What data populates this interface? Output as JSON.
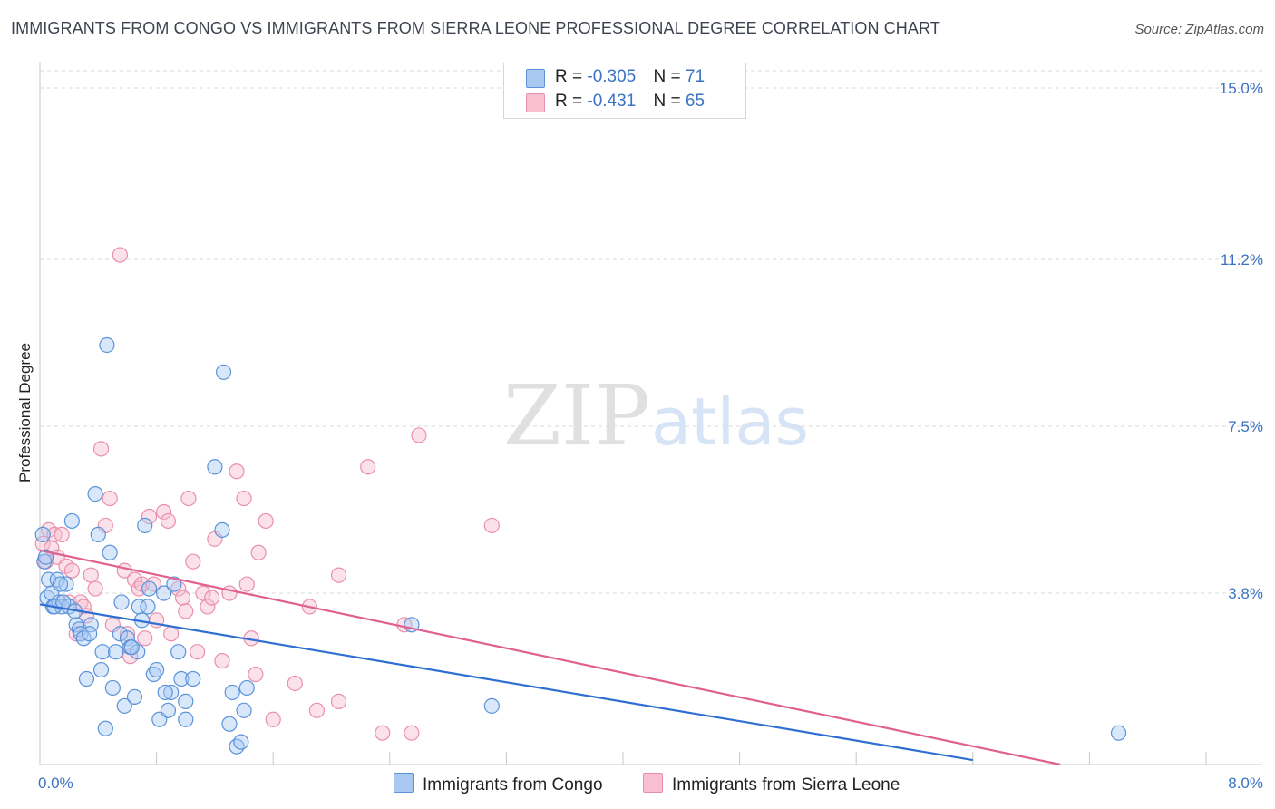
{
  "title": "IMMIGRANTS FROM CONGO VS IMMIGRANTS FROM SIERRA LEONE PROFESSIONAL DEGREE CORRELATION CHART",
  "source": "Source: ZipAtlas.com",
  "watermark": {
    "zip": "ZIP",
    "atlas": "atlas"
  },
  "legend": {
    "rows": [
      {
        "r_label": "R = ",
        "r_value": "-0.305",
        "n_label": "N = ",
        "n_value": "71"
      },
      {
        "r_label": "R = ",
        "r_value": "-0.431",
        "n_label": "N = ",
        "n_value": "65"
      }
    ]
  },
  "colors": {
    "congo_fill": "#a9c9f3",
    "congo_stroke": "#5b93d9",
    "congo_line": "#2f6fd1",
    "sl_fill": "#f7bfd0",
    "sl_stroke": "#ea8fab",
    "sl_line": "#e0608f",
    "grid": "#d9d9d9",
    "tick_label": "#3b73c4"
  },
  "chart_data": {
    "type": "scatter",
    "title": "IMMIGRANTS FROM CONGO VS IMMIGRANTS FROM SIERRA LEONE PROFESSIONAL DEGREE CORRELATION CHART",
    "xlabel": "",
    "ylabel": "Professional Degree",
    "xlim": [
      0,
      8
    ],
    "ylim": [
      0,
      15.5
    ],
    "x_tick_labels": [
      "0.0%",
      "8.0%"
    ],
    "y_ticks": [
      3.8,
      7.5,
      11.2,
      15.0
    ],
    "y_tick_labels": [
      "3.8%",
      "7.5%",
      "11.2%",
      "15.0%"
    ],
    "grid": true,
    "legend_position": "top-center",
    "series": [
      {
        "name": "Immigrants from Congo",
        "r": -0.305,
        "n": 71,
        "trend": {
          "x0": 0,
          "y0": 3.55,
          "x1": 6.4,
          "y1": 0.1
        },
        "points": [
          [
            0.02,
            5.1
          ],
          [
            0.03,
            4.5
          ],
          [
            0.05,
            3.7
          ],
          [
            0.06,
            4.1
          ],
          [
            0.08,
            3.8
          ],
          [
            0.09,
            3.5
          ],
          [
            0.12,
            4.1
          ],
          [
            0.13,
            3.6
          ],
          [
            0.15,
            3.5
          ],
          [
            0.18,
            4.0
          ],
          [
            0.2,
            3.5
          ],
          [
            0.22,
            5.4
          ],
          [
            0.25,
            3.1
          ],
          [
            0.27,
            3.0
          ],
          [
            0.28,
            2.9
          ],
          [
            0.3,
            2.8
          ],
          [
            0.32,
            1.9
          ],
          [
            0.35,
            3.1
          ],
          [
            0.38,
            6.0
          ],
          [
            0.4,
            5.1
          ],
          [
            0.42,
            2.1
          ],
          [
            0.43,
            2.5
          ],
          [
            0.45,
            0.8
          ],
          [
            0.48,
            4.7
          ],
          [
            0.5,
            1.7
          ],
          [
            0.52,
            2.5
          ],
          [
            0.55,
            2.9
          ],
          [
            0.58,
            1.3
          ],
          [
            0.6,
            2.8
          ],
          [
            0.62,
            2.6
          ],
          [
            0.65,
            1.5
          ],
          [
            0.67,
            2.5
          ],
          [
            0.68,
            3.5
          ],
          [
            0.7,
            3.2
          ],
          [
            0.72,
            5.3
          ],
          [
            0.75,
            3.9
          ],
          [
            0.78,
            2.0
          ],
          [
            0.8,
            2.1
          ],
          [
            0.82,
            1.0
          ],
          [
            0.85,
            3.8
          ],
          [
            0.88,
            1.2
          ],
          [
            0.9,
            1.6
          ],
          [
            0.92,
            4.0
          ],
          [
            0.95,
            2.5
          ],
          [
            0.97,
            1.9
          ],
          [
            1.0,
            1.0
          ],
          [
            1.0,
            1.4
          ],
          [
            1.2,
            6.6
          ],
          [
            1.25,
            5.2
          ],
          [
            1.3,
            0.9
          ],
          [
            1.32,
            1.6
          ],
          [
            1.35,
            0.4
          ],
          [
            1.4,
            1.2
          ],
          [
            1.42,
            1.7
          ],
          [
            2.55,
            3.1
          ],
          [
            3.1,
            1.3
          ],
          [
            7.4,
            0.7
          ],
          [
            0.46,
            9.3
          ],
          [
            1.26,
            8.7
          ],
          [
            0.04,
            4.6
          ],
          [
            0.1,
            3.5
          ],
          [
            0.14,
            4.0
          ],
          [
            0.16,
            3.6
          ],
          [
            0.24,
            3.4
          ],
          [
            0.34,
            2.9
          ],
          [
            0.56,
            3.6
          ],
          [
            0.63,
            2.6
          ],
          [
            0.74,
            3.5
          ],
          [
            0.86,
            1.6
          ],
          [
            1.05,
            1.9
          ],
          [
            1.38,
            0.5
          ]
        ]
      },
      {
        "name": "Immigrants from Sierra Leone",
        "r": -0.431,
        "n": 65,
        "trend": {
          "x0": 0,
          "y0": 4.75,
          "x1": 7.0,
          "y1": 0.0
        },
        "points": [
          [
            0.02,
            4.9
          ],
          [
            0.04,
            4.5
          ],
          [
            0.06,
            5.2
          ],
          [
            0.08,
            4.8
          ],
          [
            0.1,
            5.1
          ],
          [
            0.12,
            4.6
          ],
          [
            0.15,
            5.1
          ],
          [
            0.18,
            4.4
          ],
          [
            0.2,
            3.6
          ],
          [
            0.22,
            4.3
          ],
          [
            0.25,
            2.9
          ],
          [
            0.28,
            3.6
          ],
          [
            0.3,
            3.5
          ],
          [
            0.32,
            3.3
          ],
          [
            0.35,
            4.2
          ],
          [
            0.38,
            3.9
          ],
          [
            0.42,
            7.0
          ],
          [
            0.45,
            5.3
          ],
          [
            0.48,
            5.9
          ],
          [
            0.5,
            3.1
          ],
          [
            0.55,
            11.3
          ],
          [
            0.58,
            4.3
          ],
          [
            0.6,
            2.9
          ],
          [
            0.62,
            2.4
          ],
          [
            0.65,
            4.1
          ],
          [
            0.68,
            3.9
          ],
          [
            0.7,
            4.0
          ],
          [
            0.72,
            2.8
          ],
          [
            0.75,
            5.5
          ],
          [
            0.78,
            4.0
          ],
          [
            0.8,
            3.2
          ],
          [
            0.85,
            5.6
          ],
          [
            0.88,
            5.4
          ],
          [
            0.9,
            2.9
          ],
          [
            0.95,
            3.9
          ],
          [
            0.98,
            3.7
          ],
          [
            1.0,
            3.4
          ],
          [
            1.02,
            5.9
          ],
          [
            1.05,
            4.5
          ],
          [
            1.08,
            2.5
          ],
          [
            1.12,
            3.8
          ],
          [
            1.15,
            3.5
          ],
          [
            1.18,
            3.7
          ],
          [
            1.2,
            5.0
          ],
          [
            1.25,
            2.3
          ],
          [
            1.3,
            3.8
          ],
          [
            1.35,
            6.5
          ],
          [
            1.4,
            5.9
          ],
          [
            1.42,
            4.0
          ],
          [
            1.45,
            2.8
          ],
          [
            1.48,
            2.0
          ],
          [
            1.5,
            4.7
          ],
          [
            1.55,
            5.4
          ],
          [
            1.6,
            1.0
          ],
          [
            1.75,
            1.8
          ],
          [
            1.85,
            3.5
          ],
          [
            1.9,
            1.2
          ],
          [
            2.05,
            4.2
          ],
          [
            2.05,
            1.4
          ],
          [
            2.25,
            6.6
          ],
          [
            2.35,
            0.7
          ],
          [
            2.5,
            3.1
          ],
          [
            2.55,
            0.7
          ],
          [
            2.6,
            7.3
          ],
          [
            3.1,
            5.3
          ]
        ]
      }
    ]
  },
  "bottom_legend": [
    "Immigrants from Congo",
    "Immigrants from Sierra Leone"
  ]
}
